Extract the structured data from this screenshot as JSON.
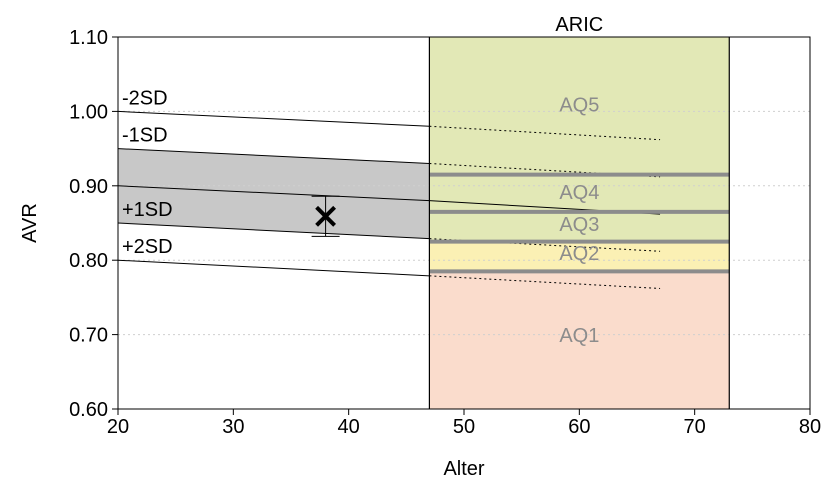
{
  "chart_data": {
    "type": "line",
    "xlabel": "Alter",
    "ylabel": "AVR",
    "xlim": [
      20,
      80
    ],
    "ylim": [
      0.6,
      1.1
    ],
    "x_ticks": [
      20,
      30,
      40,
      50,
      60,
      70,
      80
    ],
    "y_ticks": [
      0.6,
      0.7,
      0.8,
      0.9,
      1.0,
      1.1
    ],
    "x_tick_labels": [
      "20",
      "30",
      "40",
      "50",
      "60",
      "70",
      "80"
    ],
    "y_tick_labels": [
      "0.60",
      "0.70",
      "0.80",
      "0.90",
      "1.00",
      "1.10"
    ],
    "grid": "horizontal dotted",
    "aric": {
      "label": "ARIC",
      "x_range": [
        47,
        73
      ],
      "quintile_boundaries": [
        0.785,
        0.825,
        0.865,
        0.915
      ],
      "zones": [
        {
          "label": "AQ1",
          "y_range": [
            0.6,
            0.785
          ],
          "color": "#fadccc"
        },
        {
          "label": "AQ2",
          "y_range": [
            0.785,
            0.825
          ],
          "color": "#fbf0b4"
        },
        {
          "label": "AQ3",
          "y_range": [
            0.825,
            0.865
          ],
          "color": "#e2e8b6"
        },
        {
          "label": "AQ4",
          "y_range": [
            0.865,
            0.915
          ],
          "color": "#e2e8b6"
        },
        {
          "label": "AQ5",
          "y_range": [
            0.915,
            1.1
          ],
          "color": "#e2e8b6"
        }
      ],
      "boundary_color": "#8c8c8c"
    },
    "reference_lines": [
      {
        "label": "-2SD",
        "points": [
          [
            20,
            1.0
          ],
          [
            47,
            0.98
          ]
        ],
        "extension": [
          [
            47,
            0.98
          ],
          [
            67,
            0.962
          ]
        ]
      },
      {
        "label": "-1SD",
        "points": [
          [
            20,
            0.95
          ],
          [
            47,
            0.93
          ]
        ],
        "extension": [
          [
            47,
            0.93
          ],
          [
            67,
            0.912
          ]
        ]
      },
      {
        "label": "",
        "points": [
          [
            20,
            0.9
          ],
          [
            47,
            0.88
          ]
        ],
        "extension": [
          [
            47,
            0.88
          ],
          [
            67,
            0.862
          ]
        ],
        "style": "solid"
      },
      {
        "label": "+1SD",
        "points": [
          [
            20,
            0.85
          ],
          [
            47,
            0.829
          ]
        ],
        "extension": [
          [
            47,
            0.829
          ],
          [
            67,
            0.812
          ]
        ]
      },
      {
        "label": "+2SD",
        "points": [
          [
            20,
            0.8
          ],
          [
            47,
            0.779
          ]
        ],
        "extension": [
          [
            47,
            0.779
          ],
          [
            67,
            0.762
          ]
        ]
      }
    ],
    "band": {
      "between": [
        "-1SD",
        "+1SD"
      ],
      "color": "#c8c8c8"
    },
    "measurement": {
      "x": 38,
      "y": 0.859,
      "error_low": 0.832,
      "error_high": 0.886
    }
  }
}
